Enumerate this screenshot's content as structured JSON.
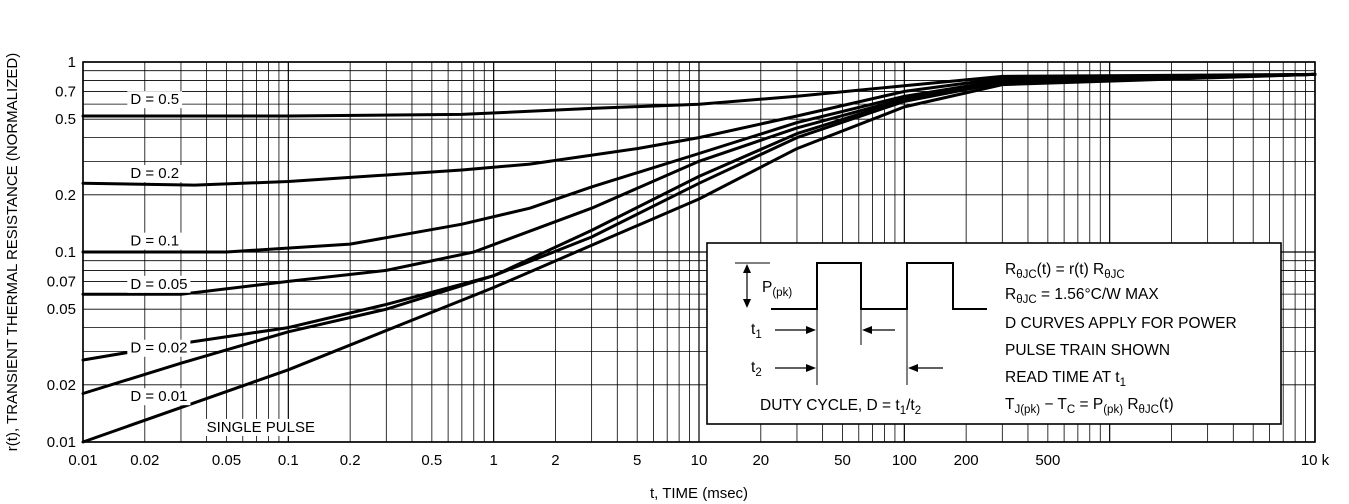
{
  "chart_data": {
    "type": "line",
    "xlabel": "t, TIME (msec)",
    "ylabel": "r(t), TRANSIENT THERMAL RESISTANCE (NORMALIZED)",
    "xscale": "log",
    "yscale": "log",
    "xlim": [
      0.01,
      10000
    ],
    "ylim": [
      0.01,
      1
    ],
    "grid": true,
    "x_ticks": [
      {
        "v": 0.01,
        "label": "0.01"
      },
      {
        "v": 0.02,
        "label": "0.02"
      },
      {
        "v": 0.05,
        "label": "0.05"
      },
      {
        "v": 0.1,
        "label": "0.1"
      },
      {
        "v": 0.2,
        "label": "0.2"
      },
      {
        "v": 0.5,
        "label": "0.5"
      },
      {
        "v": 1,
        "label": "1"
      },
      {
        "v": 2,
        "label": "2"
      },
      {
        "v": 5,
        "label": "5"
      },
      {
        "v": 10,
        "label": "10"
      },
      {
        "v": 20,
        "label": "20"
      },
      {
        "v": 50,
        "label": "50"
      },
      {
        "v": 100,
        "label": "100"
      },
      {
        "v": 200,
        "label": "200"
      },
      {
        "v": 500,
        "label": "500"
      },
      {
        "v": 10000,
        "label": "10 k"
      }
    ],
    "y_ticks": [
      {
        "v": 0.01,
        "label": "0.01"
      },
      {
        "v": 0.02,
        "label": "0.02"
      },
      {
        "v": 0.05,
        "label": "0.05"
      },
      {
        "v": 0.07,
        "label": "0.07"
      },
      {
        "v": 0.1,
        "label": "0.1"
      },
      {
        "v": 0.2,
        "label": "0.2"
      },
      {
        "v": 0.5,
        "label": "0.5"
      },
      {
        "v": 0.7,
        "label": "0.7"
      },
      {
        "v": 1,
        "label": "1"
      }
    ],
    "series": [
      {
        "name": "D = 0.5",
        "x": [
          0.01,
          0.1,
          0.7,
          3,
          10,
          30,
          100,
          300,
          10000
        ],
        "y": [
          0.52,
          0.52,
          0.53,
          0.57,
          0.6,
          0.66,
          0.75,
          0.84,
          0.86
        ]
      },
      {
        "name": "D = 0.2",
        "x": [
          0.01,
          0.035,
          0.1,
          0.7,
          1.5,
          5,
          10,
          30,
          100,
          300,
          10000
        ],
        "y": [
          0.23,
          0.225,
          0.235,
          0.27,
          0.29,
          0.35,
          0.4,
          0.52,
          0.7,
          0.82,
          0.86
        ]
      },
      {
        "name": "D = 0.1",
        "x": [
          0.01,
          0.05,
          0.2,
          0.7,
          1.5,
          3,
          10,
          30,
          100,
          300,
          10000
        ],
        "y": [
          0.1,
          0.1,
          0.11,
          0.14,
          0.17,
          0.22,
          0.33,
          0.48,
          0.66,
          0.8,
          0.86
        ]
      },
      {
        "name": "D = 0.05",
        "x": [
          0.01,
          0.03,
          0.1,
          0.3,
          0.8,
          3,
          10,
          30,
          100,
          300,
          10000
        ],
        "y": [
          0.06,
          0.06,
          0.07,
          0.08,
          0.1,
          0.17,
          0.3,
          0.45,
          0.64,
          0.79,
          0.86
        ]
      },
      {
        "name": "D = 0.02",
        "x": [
          0.01,
          0.03,
          0.1,
          0.3,
          1,
          3,
          10,
          30,
          100,
          300,
          10000
        ],
        "y": [
          0.027,
          0.033,
          0.04,
          0.053,
          0.075,
          0.13,
          0.25,
          0.42,
          0.63,
          0.78,
          0.86
        ]
      },
      {
        "name": "D = 0.01",
        "x": [
          0.01,
          0.03,
          0.1,
          0.3,
          1,
          3,
          10,
          30,
          100,
          300,
          10000
        ],
        "y": [
          0.018,
          0.026,
          0.038,
          0.05,
          0.075,
          0.12,
          0.23,
          0.4,
          0.62,
          0.78,
          0.86
        ]
      },
      {
        "name": "SINGLE PULSE",
        "x": [
          0.01,
          0.1,
          1,
          10,
          30,
          100,
          300,
          10000
        ],
        "y": [
          0.01,
          0.024,
          0.065,
          0.19,
          0.35,
          0.58,
          0.76,
          0.86
        ]
      }
    ],
    "curve_labels": [
      {
        "text": "D = 0.5",
        "x": 0.017,
        "y": 0.6
      },
      {
        "text": "D = 0.2",
        "x": 0.017,
        "y": 0.245
      },
      {
        "text": "D = 0.1",
        "x": 0.017,
        "y": 0.108
      },
      {
        "text": "D = 0.05",
        "x": 0.017,
        "y": 0.064
      },
      {
        "text": "D = 0.02",
        "x": 0.017,
        "y": 0.0295
      },
      {
        "text": "D = 0.01",
        "x": 0.017,
        "y": 0.0164
      },
      {
        "text": "SINGLE PULSE",
        "x": 0.04,
        "y": 0.0113
      }
    ]
  },
  "inset": {
    "ppk": "P",
    "ppk_sub": "(pk)",
    "t1": "t",
    "t1_sub": "1",
    "t2": "t",
    "t2_sub": "2",
    "duty_cycle_prefix": "DUTY CYCLE, D = t",
    "duty_cycle_sub1": "1",
    "duty_cycle_slash": "/t",
    "duty_cycle_sub2": "2",
    "line1": {
      "r": "R",
      "sub": "θJC",
      "mid": "(t) = r(t) R",
      "sub2": "θJC"
    },
    "line2": {
      "r": "R",
      "sub": "θJC",
      "rest": " = 1.56°C/W MAX"
    },
    "line3": "D CURVES APPLY FOR POWER",
    "line4": "PULSE TRAIN SHOWN",
    "line5": {
      "text": "READ TIME AT t",
      "sub": "1"
    },
    "line6": {
      "a": "T",
      "a_sub": "J(pk)",
      "b": " − T",
      "b_sub": "C",
      "c": " = P",
      "c_sub": "(pk)",
      "d": " R",
      "d_sub": "θJC",
      "e": "(t)"
    }
  }
}
